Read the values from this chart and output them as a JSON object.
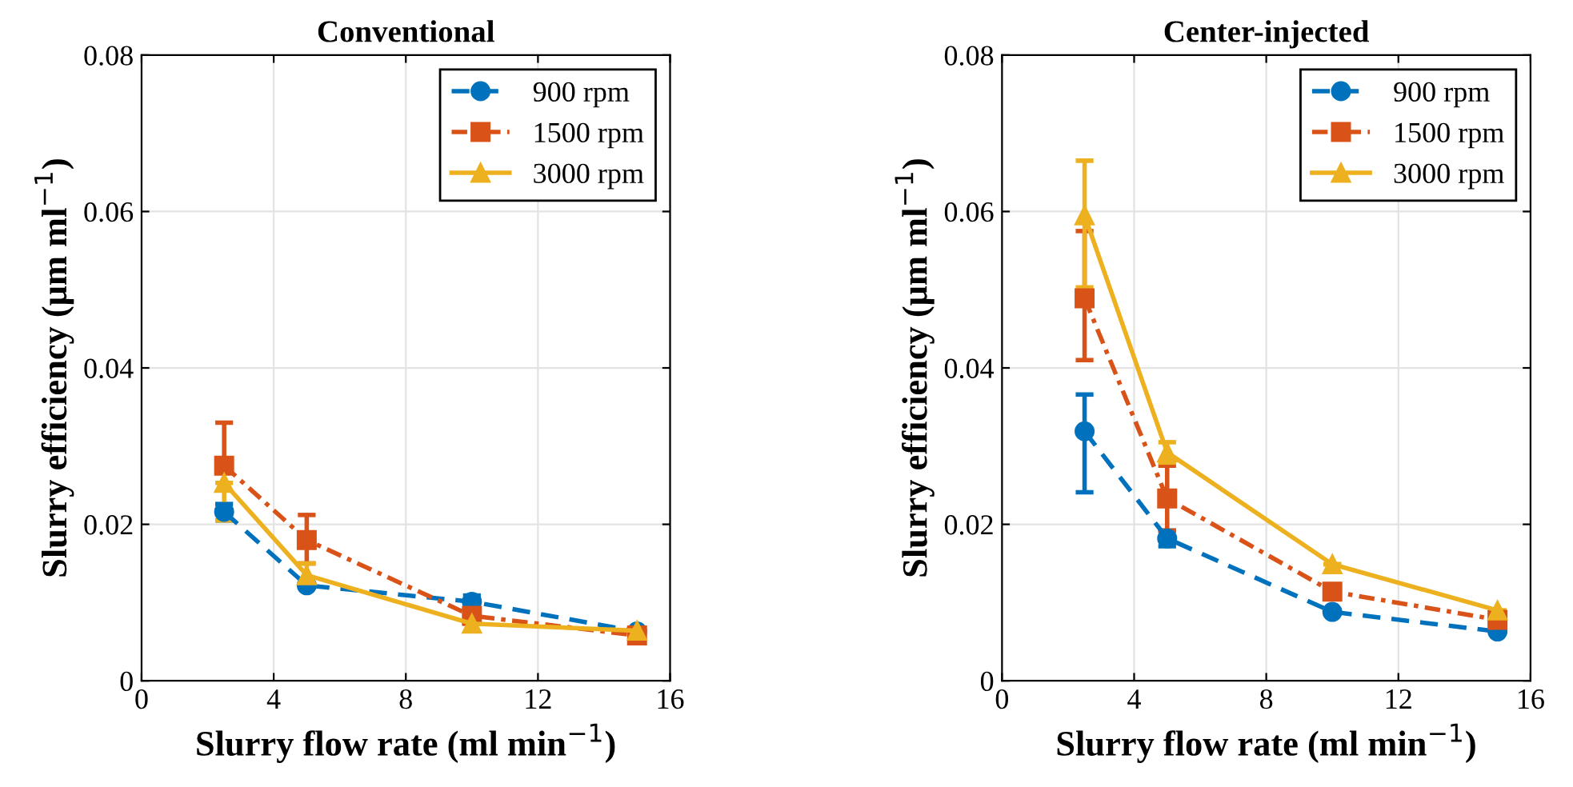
{
  "chart_data": [
    {
      "type": "line",
      "title": "Conventional",
      "xlabel": "Slurry flow rate (ml min$^{−1}$)",
      "ylabel": "Slurry efficiency (μm ml$^{−1}$)",
      "xlim": [
        0,
        16
      ],
      "xticks": [
        0,
        4,
        8,
        12,
        16
      ],
      "ylim": [
        0,
        0.08
      ],
      "yticks": [
        0,
        0.02,
        0.04,
        0.06,
        0.08
      ],
      "grid": true,
      "legend": "top right",
      "x": [
        2.5,
        5,
        10,
        15
      ],
      "series": [
        {
          "name": "900 rpm",
          "color": "#0072bd",
          "marker": "circle",
          "line_style": "dashed",
          "values": [
            0.0216,
            0.0122,
            0.0101,
            0.0063
          ],
          "errors": [
            [
              0.0205,
              0.0226
            ],
            null,
            [
              0.0093,
              0.0109
            ],
            null
          ]
        },
        {
          "name": "1500 rpm",
          "color": "#d95319",
          "marker": "square",
          "line_style": "dashdot",
          "values": [
            0.0275,
            0.018,
            0.0083,
            0.0058
          ],
          "errors": [
            [
              0.0275,
              0.033
            ],
            [
              0.015,
              0.0212
            ],
            null,
            [
              0.0053,
              0.0063
            ]
          ]
        },
        {
          "name": "3000 rpm",
          "color": "#edb120",
          "marker": "triangle",
          "line_style": "solid",
          "values": [
            0.0253,
            0.0135,
            0.0073,
            0.0064
          ],
          "errors": [
            [
              0.0205,
              0.0253
            ],
            [
              0.012,
              0.015
            ],
            null,
            null
          ]
        }
      ]
    },
    {
      "type": "line",
      "title": "Center-injected",
      "xlabel": "Slurry flow rate (ml min$^{−1}$)",
      "ylabel": "Slurry efficiency (μm ml$^{−1}$)",
      "xlim": [
        0,
        16
      ],
      "xticks": [
        0,
        4,
        8,
        12,
        16
      ],
      "ylim": [
        0,
        0.08
      ],
      "yticks": [
        0,
        0.02,
        0.04,
        0.06,
        0.08
      ],
      "grid": true,
      "legend": "top right",
      "x": [
        2.5,
        5,
        10,
        15
      ],
      "series": [
        {
          "name": "900 rpm",
          "color": "#0072bd",
          "marker": "circle",
          "line_style": "dashed",
          "values": [
            0.0319,
            0.0182,
            0.0088,
            0.0063
          ],
          "errors": [
            [
              0.0241,
              0.0366
            ],
            [
              0.0172,
              0.0192
            ],
            null,
            null
          ]
        },
        {
          "name": "1500 rpm",
          "color": "#d95319",
          "marker": "square",
          "line_style": "dashdot",
          "values": [
            0.0489,
            0.0233,
            0.0114,
            0.0078
          ],
          "errors": [
            [
              0.041,
              0.0575
            ],
            [
              0.0192,
              0.0275
            ],
            [
              0.0105,
              0.0123
            ],
            null
          ]
        },
        {
          "name": "3000 rpm",
          "color": "#edb120",
          "marker": "triangle",
          "line_style": "solid",
          "values": [
            0.0595,
            0.0292,
            0.0149,
            0.009
          ],
          "errors": [
            [
              0.0503,
              0.0665
            ],
            [
              0.0279,
              0.0305
            ],
            null,
            null
          ]
        }
      ]
    }
  ]
}
